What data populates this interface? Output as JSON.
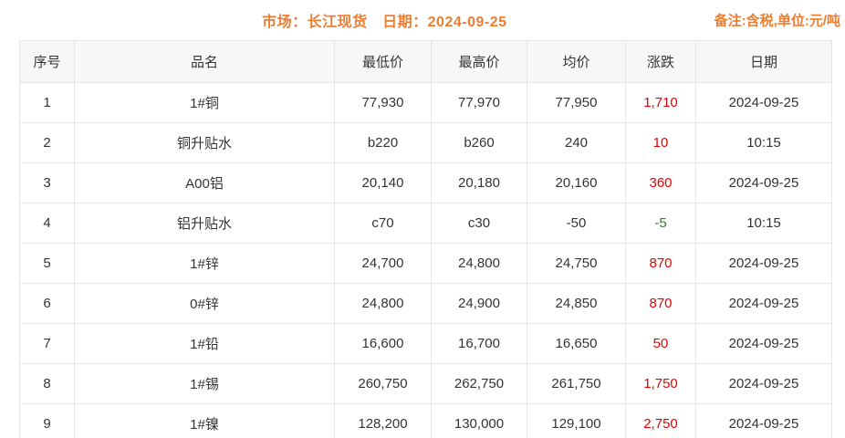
{
  "page": {
    "title": "市场：长江现货　日期：2024-09-25",
    "remark": "备注:含税,单位:元/吨"
  },
  "colors": {
    "accent_orange": "#ed7d31",
    "up_red": "#e60000",
    "down_green": "#2e7d32"
  },
  "table": {
    "headers": {
      "serial": "序号",
      "name": "品名",
      "low": "最低价",
      "high": "最高价",
      "avg": "均价",
      "change": "涨跌",
      "date": "日期"
    },
    "rows": [
      {
        "no": "1",
        "name": "1#铜",
        "low": "77,930",
        "high": "77,970",
        "avg": "77,950",
        "change": "1,710",
        "change_dir": "up",
        "date": "2024-09-25"
      },
      {
        "no": "2",
        "name": "铜升贴水",
        "low": "b220",
        "high": "b260",
        "avg": "240",
        "change": "10",
        "change_dir": "up",
        "date": "10:15"
      },
      {
        "no": "3",
        "name": "A00铝",
        "low": "20,140",
        "high": "20,180",
        "avg": "20,160",
        "change": "360",
        "change_dir": "up",
        "date": "2024-09-25"
      },
      {
        "no": "4",
        "name": "铝升贴水",
        "low": "c70",
        "high": "c30",
        "avg": "-50",
        "change": "-5",
        "change_dir": "down",
        "date": "10:15"
      },
      {
        "no": "5",
        "name": "1#锌",
        "low": "24,700",
        "high": "24,800",
        "avg": "24,750",
        "change": "870",
        "change_dir": "up",
        "date": "2024-09-25"
      },
      {
        "no": "6",
        "name": "0#锌",
        "low": "24,800",
        "high": "24,900",
        "avg": "24,850",
        "change": "870",
        "change_dir": "up",
        "date": "2024-09-25"
      },
      {
        "no": "7",
        "name": "1#铅",
        "low": "16,600",
        "high": "16,700",
        "avg": "16,650",
        "change": "50",
        "change_dir": "up",
        "date": "2024-09-25"
      },
      {
        "no": "8",
        "name": "1#锡",
        "low": "260,750",
        "high": "262,750",
        "avg": "261,750",
        "change": "1,750",
        "change_dir": "up",
        "date": "2024-09-25"
      },
      {
        "no": "9",
        "name": "1#镍",
        "low": "128,200",
        "high": "130,000",
        "avg": "129,100",
        "change": "2,750",
        "change_dir": "up",
        "date": "2024-09-25"
      }
    ]
  }
}
